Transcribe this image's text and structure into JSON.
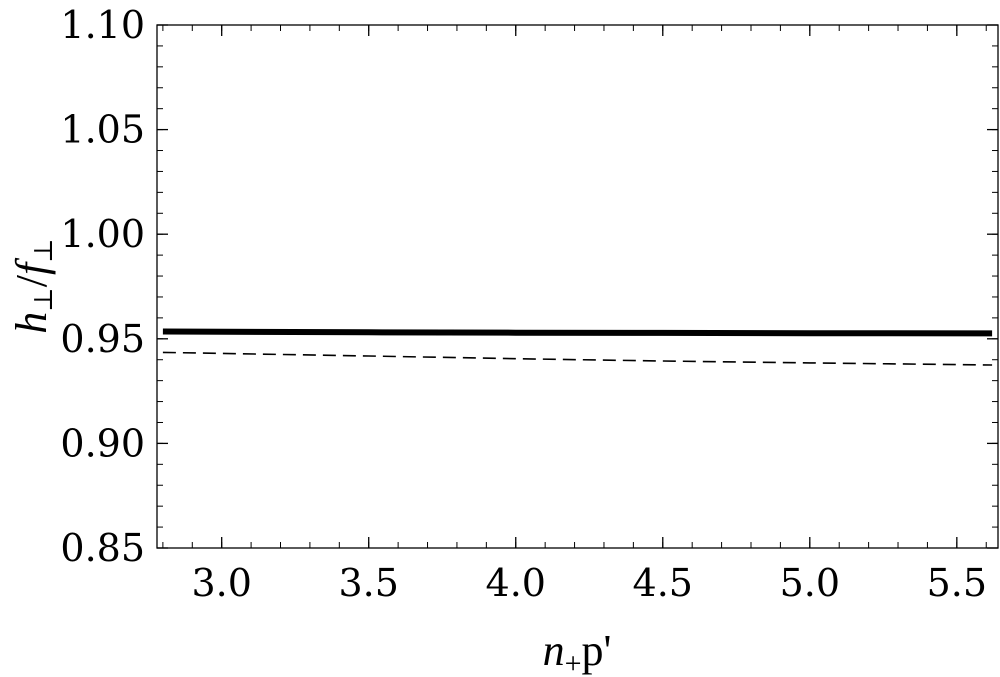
{
  "chart_data": {
    "type": "line",
    "xlabel": {
      "main": "n",
      "sub": "+",
      "rest": "p'"
    },
    "ylabel": {
      "num": "h",
      "num_sub": "⊥",
      "slash": "/",
      "den": "f",
      "den_sub": "⊥"
    },
    "xlim": [
      2.78,
      5.64
    ],
    "ylim": [
      0.85,
      1.1
    ],
    "x_ticks": [
      {
        "value": 3.0,
        "label": "3.0"
      },
      {
        "value": 3.5,
        "label": "3.5"
      },
      {
        "value": 4.0,
        "label": "4.0"
      },
      {
        "value": 4.5,
        "label": "4.5"
      },
      {
        "value": 5.0,
        "label": "5.0"
      },
      {
        "value": 5.5,
        "label": "5.5"
      }
    ],
    "y_ticks": [
      {
        "value": 0.85,
        "label": "0.85"
      },
      {
        "value": 0.9,
        "label": "0.90"
      },
      {
        "value": 0.95,
        "label": "0.95"
      },
      {
        "value": 1.0,
        "label": "1.00"
      },
      {
        "value": 1.05,
        "label": "1.05"
      },
      {
        "value": 1.1,
        "label": "1.10"
      }
    ],
    "x_minor_step": 0.1,
    "y_minor_step": 0.01,
    "grid": false,
    "series": [
      {
        "style": "solid",
        "color": "#000000",
        "x": [
          2.8,
          3.5,
          4.0,
          4.5,
          5.0,
          5.62
        ],
        "y": [
          0.9535,
          0.9531,
          0.9529,
          0.9528,
          0.9527,
          0.9526
        ]
      },
      {
        "style": "dashed",
        "color": "#000000",
        "x": [
          2.8,
          3.5,
          4.0,
          4.5,
          5.0,
          5.62
        ],
        "y": [
          0.9435,
          0.9418,
          0.9405,
          0.9394,
          0.9385,
          0.9375
        ]
      }
    ]
  }
}
